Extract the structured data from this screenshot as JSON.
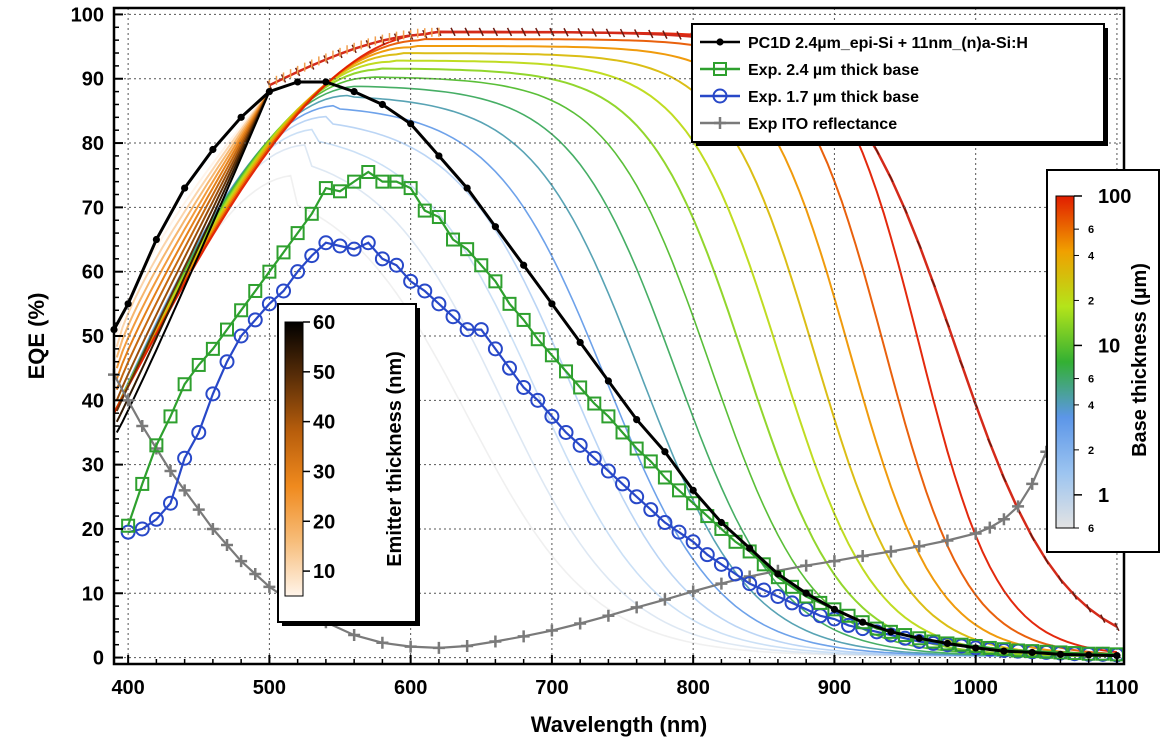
{
  "chart_data": {
    "type": "line",
    "xlabel": "Wavelength (nm)",
    "ylabel": "EQE (%)",
    "xlim": [
      390,
      1105
    ],
    "ylim": [
      -1,
      101
    ],
    "x_ticks": [
      400,
      500,
      600,
      700,
      800,
      900,
      1000,
      1100
    ],
    "y_ticks": [
      0,
      10,
      20,
      30,
      40,
      50,
      60,
      70,
      80,
      90,
      100
    ],
    "grid": true,
    "legend_position": "top-right",
    "series": [
      {
        "name": "PC1D 2.4µm_epi-Si + 11nm_(n)a-Si:H",
        "color": "#000000",
        "marker": "dot",
        "x": [
          390,
          400,
          420,
          440,
          460,
          480,
          500,
          520,
          540,
          560,
          580,
          600,
          620,
          640,
          660,
          680,
          700,
          720,
          740,
          760,
          780,
          800,
          820,
          840,
          860,
          880,
          900,
          920,
          940,
          960,
          980,
          1000,
          1020,
          1040,
          1060,
          1080,
          1100
        ],
        "y": [
          51,
          55,
          65,
          73,
          79,
          84,
          88,
          89.5,
          89.5,
          88,
          86,
          83,
          78,
          73,
          67,
          61,
          55,
          49,
          43,
          37,
          32,
          26,
          21,
          17,
          13,
          10,
          7.5,
          5.5,
          4,
          3,
          2.2,
          1.5,
          1,
          0.8,
          0.5,
          0.4,
          0.3
        ]
      },
      {
        "name": "Exp. 2.4 µm thick base",
        "color": "#2ea02e",
        "marker": "square",
        "x": [
          400,
          410,
          420,
          430,
          440,
          450,
          460,
          470,
          480,
          490,
          500,
          510,
          520,
          530,
          540,
          550,
          560,
          570,
          580,
          590,
          600,
          610,
          620,
          630,
          640,
          650,
          660,
          670,
          680,
          690,
          700,
          710,
          720,
          730,
          740,
          750,
          760,
          770,
          780,
          790,
          800,
          810,
          820,
          830,
          840,
          850,
          860,
          870,
          880,
          890,
          900,
          910,
          920,
          930,
          940,
          950,
          960,
          970,
          980,
          990,
          1000,
          1010,
          1020,
          1030,
          1040,
          1050,
          1060,
          1070,
          1080,
          1090,
          1100
        ],
        "y": [
          20.5,
          27,
          33,
          37.5,
          42.5,
          45.5,
          48,
          51,
          54,
          57,
          60,
          63,
          66,
          69,
          73,
          72.5,
          74,
          75.5,
          74,
          74,
          73,
          69.5,
          68.5,
          65,
          63.5,
          61,
          58.5,
          55,
          52.5,
          49.5,
          47,
          44.5,
          42,
          39.5,
          37.5,
          35,
          32.5,
          30.5,
          28,
          26,
          24,
          22,
          20,
          18,
          16.5,
          14.5,
          12.5,
          11,
          9.5,
          8.5,
          7.5,
          6.5,
          5.5,
          4.5,
          4,
          3.5,
          3,
          2.5,
          2.2,
          2,
          1.8,
          1.5,
          1.3,
          1.1,
          1,
          0.9,
          0.8,
          0.7,
          0.6,
          0.6,
          0.5
        ]
      },
      {
        "name": "Exp. 1.7 µm thick base",
        "color": "#2848c8",
        "marker": "circle",
        "x": [
          400,
          410,
          420,
          430,
          440,
          450,
          460,
          470,
          480,
          490,
          500,
          510,
          520,
          530,
          540,
          550,
          560,
          570,
          580,
          590,
          600,
          610,
          620,
          630,
          640,
          650,
          660,
          670,
          680,
          690,
          700,
          710,
          720,
          730,
          740,
          750,
          760,
          770,
          780,
          790,
          800,
          810,
          820,
          830,
          840,
          850,
          860,
          870,
          880,
          890,
          900,
          910,
          920,
          930,
          940,
          950,
          960,
          970,
          980,
          990,
          1000,
          1010,
          1020,
          1030,
          1040,
          1050,
          1060,
          1070,
          1080,
          1090,
          1100
        ],
        "y": [
          19.5,
          20,
          21.5,
          24,
          31,
          35,
          41,
          46,
          50,
          52.5,
          55,
          57,
          60,
          62.5,
          64.5,
          64,
          63.5,
          64.5,
          62,
          61,
          58.5,
          57,
          55,
          53,
          51,
          51,
          48,
          45,
          42,
          40,
          37.5,
          35,
          33,
          31,
          29,
          27,
          25,
          23,
          21,
          19.5,
          18,
          16,
          14.5,
          13,
          11.5,
          10.5,
          9.5,
          8.5,
          7.5,
          6.5,
          6,
          5,
          4.5,
          4,
          3.5,
          3,
          2.5,
          2.2,
          2,
          1.8,
          1.5,
          1.3,
          1.1,
          1,
          0.9,
          0.8,
          0.7,
          0.6,
          0.5,
          0.5,
          0.4
        ]
      },
      {
        "name": "Exp ITO reflectance",
        "color": "#7a7a7a",
        "marker": "plus",
        "x": [
          390,
          400,
          410,
          420,
          430,
          440,
          450,
          460,
          470,
          480,
          490,
          500,
          520,
          540,
          560,
          580,
          600,
          620,
          640,
          660,
          680,
          700,
          720,
          740,
          760,
          780,
          800,
          820,
          840,
          860,
          880,
          900,
          920,
          940,
          960,
          980,
          1000,
          1010,
          1020,
          1030,
          1040,
          1050,
          1055
        ],
        "y": [
          44,
          40,
          36,
          32.5,
          29,
          26,
          23,
          20,
          17.5,
          15,
          13,
          11,
          8,
          5.5,
          3.5,
          2.3,
          1.7,
          1.5,
          1.8,
          2.5,
          3.3,
          4.2,
          5.3,
          6.5,
          7.8,
          9,
          10.3,
          11.5,
          12.6,
          13.5,
          14.3,
          15,
          15.8,
          16.5,
          17.3,
          18.2,
          19.3,
          20.2,
          21.5,
          23.5,
          27,
          32,
          35
        ]
      }
    ],
    "base_thickness_colorbar": {
      "label": "Base thickness (µm)",
      "scale": "log",
      "range_um": [
        0.6,
        100
      ],
      "major_tick_labels": [
        "100",
        "10",
        "1"
      ],
      "minor_tick_labels": [
        "6",
        "4",
        "2",
        "6",
        "4",
        "2",
        "6"
      ],
      "colors": [
        "#e3e3e3",
        "#9cc4f0",
        "#5c96e8",
        "#33b033",
        "#b4e41a",
        "#f0a000",
        "#e11d00"
      ]
    },
    "emitter_thickness_colorbar": {
      "label": "Emitter thickness (nm)",
      "range_nm": [
        5,
        60
      ],
      "tick_labels": [
        "60",
        "50",
        "40",
        "30",
        "20",
        "10"
      ],
      "colors": [
        "#000000",
        "#5a2e08",
        "#b85e0c",
        "#f08a1e",
        "#f7bd7a",
        "#fff4ea"
      ]
    }
  }
}
